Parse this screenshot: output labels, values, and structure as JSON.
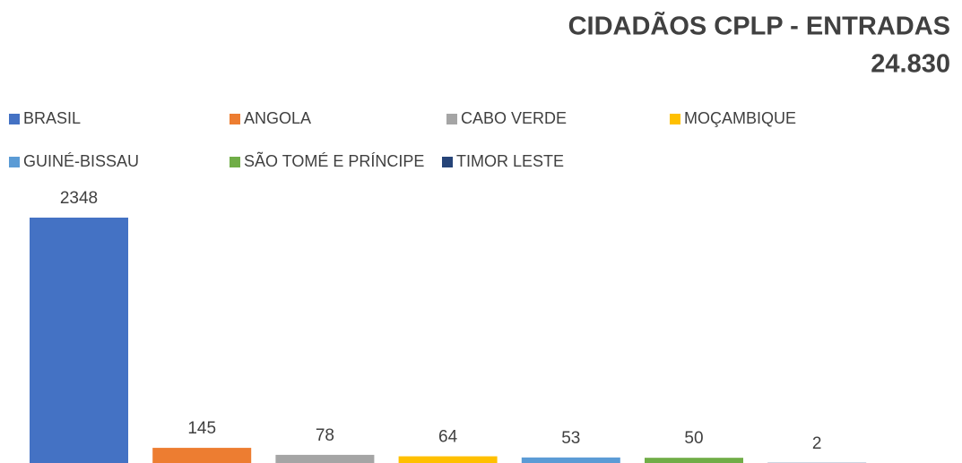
{
  "chart_data": {
    "type": "bar",
    "title": "CIDADÃOS CPLP - ENTRADAS",
    "subtitle": "24.830",
    "series": [
      {
        "name": "BRASIL",
        "color": "#4472c4",
        "values": [
          2348
        ]
      },
      {
        "name": "ANGOLA",
        "color": "#ed7d31",
        "values": [
          145
        ]
      },
      {
        "name": "CABO VERDE",
        "color": "#a5a5a5",
        "values": [
          78
        ]
      },
      {
        "name": "MOÇAMBIQUE",
        "color": "#ffc000",
        "values": [
          64
        ]
      },
      {
        "name": "GUINÉ-BISSAU",
        "color": "#5b9bd5",
        "values": [
          53
        ]
      },
      {
        "name": "SÃO TOMÉ E PRÍNCIPE",
        "color": "#70ad47",
        "values": [
          50
        ]
      },
      {
        "name": "TIMOR LESTE",
        "color": "#264478",
        "values": [
          2
        ]
      }
    ],
    "legend": "top"
  }
}
